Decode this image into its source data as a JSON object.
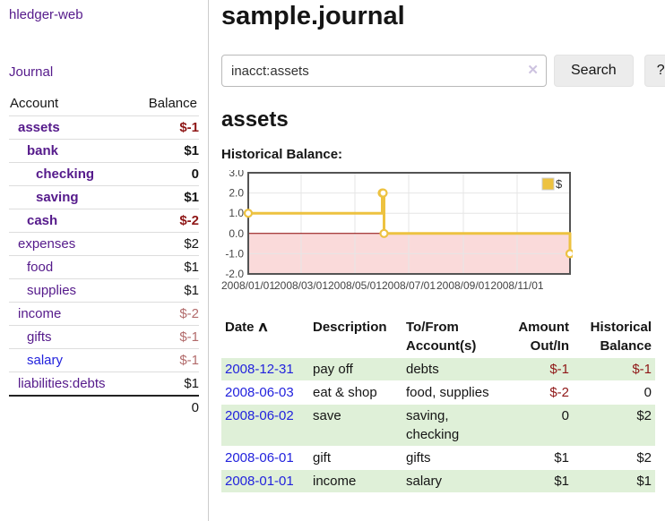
{
  "colors": {
    "purple_link": "#551a8b",
    "blue_link": "#2222dd",
    "negative": "#8f1717",
    "negative_muted": "#b26b6b",
    "row_green": "#dff0d8",
    "series_yellow": "#edc240",
    "zero_line_red": "#8b0000",
    "chart_negative_bg": "#fadada",
    "chart_border": "#545454",
    "chart_grid": "#e6e6e6"
  },
  "sidebar": {
    "brand": "hledger-web",
    "journal_link": "Journal",
    "accounts_table": {
      "headers": {
        "account": "Account",
        "balance": "Balance"
      },
      "rows": [
        {
          "name": "assets",
          "depth": 1,
          "bold": true,
          "balance": "$-1",
          "balance_style": "negative",
          "link_style": "purple"
        },
        {
          "name": "bank",
          "depth": 2,
          "bold": true,
          "balance": "$1",
          "balance_style": "positive",
          "link_style": "purple"
        },
        {
          "name": "checking",
          "depth": 3,
          "bold": true,
          "balance": "0",
          "balance_style": "positive",
          "link_style": "purple"
        },
        {
          "name": "saving",
          "depth": 3,
          "bold": true,
          "balance": "$1",
          "balance_style": "positive",
          "link_style": "purple"
        },
        {
          "name": "cash",
          "depth": 2,
          "bold": true,
          "balance": "$-2",
          "balance_style": "negative",
          "link_style": "purple"
        },
        {
          "name": "expenses",
          "depth": 1,
          "bold": false,
          "balance": "$2",
          "balance_style": "positive",
          "link_style": "purple"
        },
        {
          "name": "food",
          "depth": 2,
          "bold": false,
          "balance": "$1",
          "balance_style": "positive",
          "link_style": "purple"
        },
        {
          "name": "supplies",
          "depth": 2,
          "bold": false,
          "balance": "$1",
          "balance_style": "positive",
          "link_style": "purple"
        },
        {
          "name": "income",
          "depth": 1,
          "bold": false,
          "balance": "$-2",
          "balance_style": "negative-muted",
          "link_style": "purple"
        },
        {
          "name": "gifts",
          "depth": 2,
          "bold": false,
          "balance": "$-1",
          "balance_style": "negative-muted",
          "link_style": "purple"
        },
        {
          "name": "salary",
          "depth": 2,
          "bold": false,
          "balance": "$-1",
          "balance_style": "negative-muted",
          "link_style": "blue"
        },
        {
          "name": "liabilities:debts",
          "depth": 1,
          "bold": false,
          "balance": "$1",
          "balance_style": "positive",
          "link_style": "purple"
        }
      ],
      "total": "0"
    }
  },
  "header": {
    "title": "sample.journal"
  },
  "search": {
    "value": "inacct:assets",
    "clear_icon": "✕",
    "button_label": "Search",
    "help_label": "?"
  },
  "account_page": {
    "heading": "assets",
    "chart_title": "Historical Balance:"
  },
  "chart_data": {
    "type": "line",
    "title": "Historical Balance:",
    "step": true,
    "series": [
      {
        "name": "$",
        "color": "#edc240",
        "points": [
          [
            "2008-01-01",
            1
          ],
          [
            "2008-06-01",
            2
          ],
          [
            "2008-06-02",
            2
          ],
          [
            "2008-06-03",
            0
          ],
          [
            "2008-12-31",
            -1
          ]
        ]
      }
    ],
    "xlim": [
      "2008-01-01",
      "2008-12-31"
    ],
    "ylim": [
      -2,
      3
    ],
    "yticks": [
      {
        "v": 3,
        "label": "3.0"
      },
      {
        "v": 2,
        "label": "2.0"
      },
      {
        "v": 1,
        "label": "1.0"
      },
      {
        "v": 0,
        "label": "0.0"
      },
      {
        "v": -1,
        "label": "-1.0"
      },
      {
        "v": -2,
        "label": "-2.0"
      }
    ],
    "xticks": [
      {
        "date": "2008-01-01",
        "label": "2008/01/01"
      },
      {
        "date": "2008-03-01",
        "label": "2008/03/01"
      },
      {
        "date": "2008-05-01",
        "label": "2008/05/01"
      },
      {
        "date": "2008-07-01",
        "label": "2008/07/01"
      },
      {
        "date": "2008-09-01",
        "label": "2008/09/01"
      },
      {
        "date": "2008-11-01",
        "label": "2008/11/01"
      }
    ],
    "legend": {
      "position": "top-right",
      "label": "$"
    },
    "grid": true,
    "negative_region_shaded": true
  },
  "register": {
    "headers": {
      "date": "Date",
      "description": "Description",
      "accounts": "To/From Account(s)",
      "amount": "Amount Out/In",
      "balance": "Historical Balance"
    },
    "sort_icon": "∧",
    "rows": [
      {
        "date": "2008-12-31",
        "description": "pay off",
        "accounts": "debts",
        "amount": "$-1",
        "amount_style": "negative",
        "balance": "$-1",
        "balance_style": "negative",
        "shaded": true
      },
      {
        "date": "2008-06-03",
        "description": "eat & shop",
        "accounts": "food, supplies",
        "amount": "$-2",
        "amount_style": "negative",
        "balance": "0",
        "balance_style": "positive",
        "shaded": false
      },
      {
        "date": "2008-06-02",
        "description": "save",
        "accounts": "saving, checking",
        "amount": "0",
        "amount_style": "positive",
        "balance": "$2",
        "balance_style": "positive",
        "shaded": true
      },
      {
        "date": "2008-06-01",
        "description": "gift",
        "accounts": "gifts",
        "amount": "$1",
        "amount_style": "positive",
        "balance": "$2",
        "balance_style": "positive",
        "shaded": false
      },
      {
        "date": "2008-01-01",
        "description": "income",
        "accounts": "salary",
        "amount": "$1",
        "amount_style": "positive",
        "balance": "$1",
        "balance_style": "positive",
        "shaded": true
      }
    ]
  }
}
